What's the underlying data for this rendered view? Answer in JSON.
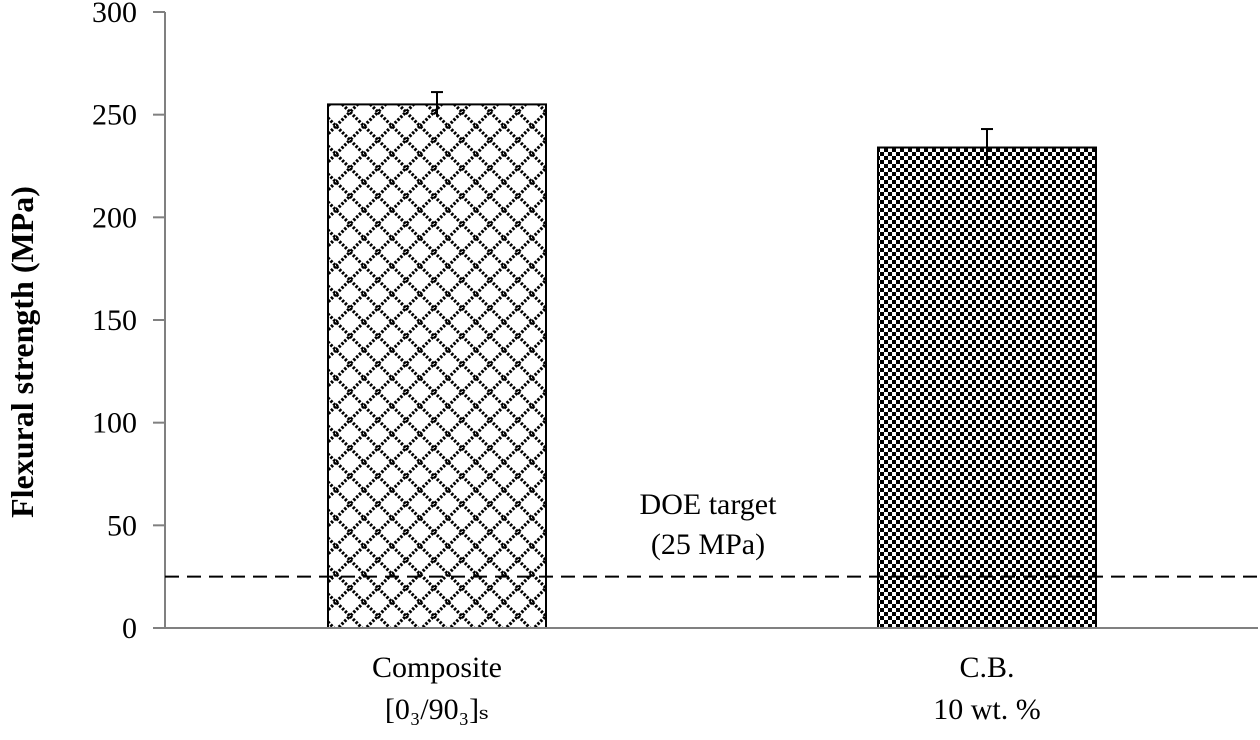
{
  "chart_data": {
    "type": "bar",
    "categories": [
      "Composite [0₃/90₃]ₛ",
      "C.B. 10 wt. %"
    ],
    "category_label_lines": [
      [
        "Composite",
        "[0₃/90₃]ₛ"
      ],
      [
        "C.B.",
        "10 wt. %"
      ]
    ],
    "values": [
      255,
      234
    ],
    "error_bars": [
      6,
      9
    ],
    "patterns": [
      "open-diamond-lattice",
      "dense-checkerboard"
    ],
    "ylabel": "Flexural strength (MPa)",
    "ylim": [
      0,
      300
    ],
    "yticks": [
      0,
      50,
      100,
      150,
      200,
      250,
      300
    ],
    "reference_line": {
      "value": 25,
      "style": "dashed",
      "label_lines": [
        "DOE target",
        "(25 MPa)"
      ]
    },
    "grid": false,
    "legend": "none"
  }
}
